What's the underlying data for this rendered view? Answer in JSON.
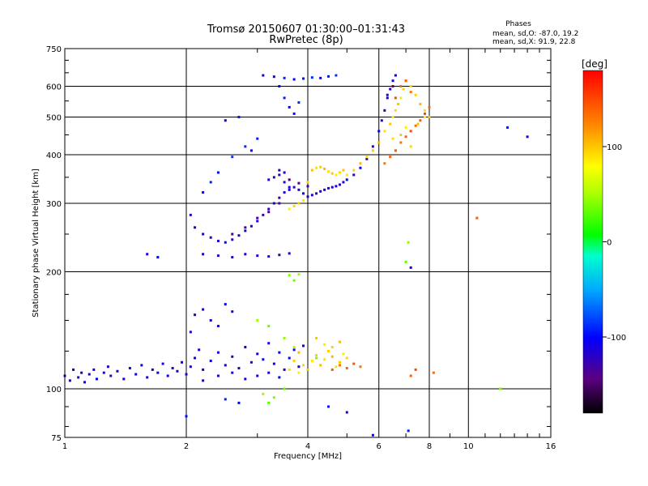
{
  "chart_data": {
    "type": "scatter",
    "title": "Tromsø 20150607 01:30:00–01:31:43",
    "subtitle": "RwPretec (8p)",
    "phases_title": "Phases",
    "phases_o": "mean, sd,O: -87.0, 19.2",
    "phases_x": "mean, sd,X:  91.9, 22.8",
    "xlabel": "Frequency [MHz]",
    "ylabel": "Stationary phase Virtual Height [km]",
    "xscale": "log",
    "yscale": "log",
    "xlim": [
      1,
      16
    ],
    "ylim": [
      75,
      750
    ],
    "xticks": [
      1,
      2,
      4,
      6,
      8,
      10,
      16
    ],
    "xtick_labels": [
      "1",
      "2",
      "4",
      "6",
      "8",
      "10",
      "16"
    ],
    "yticks": [
      75,
      100,
      200,
      300,
      400,
      500,
      600,
      750
    ],
    "ytick_labels": [
      "75",
      "100",
      "200",
      "300",
      "400",
      "500",
      "600",
      "750"
    ],
    "grid": true,
    "colorbar": {
      "label": "[deg]",
      "range": [
        -180,
        180
      ],
      "ticks": [
        100,
        0,
        -100
      ],
      "tick_labels": [
        "100",
        "0",
        "–100"
      ]
    },
    "series": [
      {
        "mode": "O",
        "phase": -110,
        "points": [
          [
            1.0,
            108
          ],
          [
            1.03,
            105
          ],
          [
            1.05,
            112
          ],
          [
            1.08,
            107
          ],
          [
            1.1,
            110
          ],
          [
            1.12,
            104
          ],
          [
            1.15,
            109
          ],
          [
            1.18,
            112
          ],
          [
            1.2,
            106
          ],
          [
            1.25,
            110
          ],
          [
            1.28,
            114
          ],
          [
            1.3,
            108
          ],
          [
            1.35,
            111
          ],
          [
            1.4,
            106
          ],
          [
            1.45,
            113
          ],
          [
            1.5,
            109
          ],
          [
            1.55,
            115
          ],
          [
            1.6,
            107
          ],
          [
            1.65,
            112
          ],
          [
            1.7,
            110
          ],
          [
            1.75,
            116
          ],
          [
            1.8,
            108
          ],
          [
            1.85,
            113
          ],
          [
            1.9,
            111
          ],
          [
            1.95,
            117
          ],
          [
            2.0,
            109
          ],
          [
            2.05,
            114
          ],
          [
            2.1,
            120
          ],
          [
            2.15,
            126
          ],
          [
            2.2,
            112
          ],
          [
            2.3,
            118
          ],
          [
            2.4,
            124
          ],
          [
            2.5,
            115
          ],
          [
            2.6,
            121
          ],
          [
            2.7,
            113
          ],
          [
            2.8,
            128
          ],
          [
            2.9,
            117
          ],
          [
            3.0,
            123
          ],
          [
            3.1,
            119
          ],
          [
            3.2,
            131
          ],
          [
            3.3,
            116
          ],
          [
            3.4,
            124
          ],
          [
            3.5,
            112
          ],
          [
            3.6,
            120
          ],
          [
            3.7,
            126
          ],
          [
            3.8,
            114
          ],
          [
            3.9,
            129
          ],
          [
            2.05,
            140
          ],
          [
            2.1,
            155
          ],
          [
            2.2,
            160
          ],
          [
            2.3,
            150
          ],
          [
            2.4,
            145
          ],
          [
            2.5,
            165
          ],
          [
            2.6,
            158
          ],
          [
            2.2,
            105
          ],
          [
            2.4,
            108
          ],
          [
            2.6,
            110
          ],
          [
            2.8,
            106
          ],
          [
            3.0,
            108
          ],
          [
            3.2,
            110
          ],
          [
            3.4,
            107
          ]
        ]
      },
      {
        "mode": "O",
        "phase": -115,
        "points": [
          [
            2.05,
            280
          ],
          [
            2.1,
            260
          ],
          [
            2.2,
            250
          ],
          [
            2.3,
            245
          ],
          [
            2.4,
            240
          ],
          [
            2.5,
            238
          ],
          [
            2.6,
            242
          ],
          [
            2.7,
            248
          ],
          [
            2.8,
            255
          ],
          [
            2.9,
            262
          ],
          [
            3.0,
            270
          ],
          [
            3.1,
            280
          ],
          [
            3.2,
            290
          ],
          [
            3.3,
            300
          ],
          [
            3.4,
            310
          ],
          [
            3.5,
            320
          ],
          [
            3.6,
            325
          ],
          [
            3.7,
            330
          ],
          [
            3.8,
            325
          ],
          [
            3.9,
            318
          ],
          [
            4.0,
            312
          ],
          [
            4.1,
            315
          ],
          [
            4.2,
            318
          ],
          [
            4.3,
            322
          ],
          [
            4.4,
            325
          ],
          [
            4.5,
            328
          ],
          [
            4.6,
            330
          ],
          [
            4.7,
            332
          ],
          [
            4.8,
            335
          ],
          [
            4.9,
            340
          ],
          [
            5.0,
            345
          ],
          [
            5.2,
            355
          ],
          [
            5.4,
            370
          ],
          [
            5.6,
            390
          ],
          [
            5.8,
            420
          ],
          [
            6.0,
            460
          ],
          [
            6.1,
            490
          ],
          [
            6.2,
            520
          ],
          [
            6.3,
            560
          ],
          [
            6.4,
            590
          ],
          [
            6.5,
            620
          ],
          [
            6.6,
            640
          ],
          [
            3.2,
            345
          ],
          [
            3.3,
            350
          ],
          [
            3.4,
            355
          ],
          [
            3.5,
            340
          ],
          [
            3.6,
            330
          ],
          [
            3.4,
            365
          ],
          [
            3.5,
            360
          ],
          [
            2.2,
            222
          ],
          [
            2.4,
            220
          ],
          [
            2.6,
            218
          ],
          [
            2.8,
            222
          ],
          [
            3.0,
            220
          ],
          [
            3.2,
            219
          ],
          [
            3.4,
            221
          ],
          [
            3.6,
            223
          ]
        ]
      },
      {
        "mode": "O",
        "phase": -95,
        "points": [
          [
            3.1,
            640
          ],
          [
            3.3,
            635
          ],
          [
            3.5,
            630
          ],
          [
            3.7,
            625
          ],
          [
            3.9,
            628
          ],
          [
            4.1,
            632
          ],
          [
            4.3,
            630
          ],
          [
            4.5,
            636
          ],
          [
            4.7,
            640
          ],
          [
            3.4,
            600
          ],
          [
            3.5,
            560
          ],
          [
            3.6,
            530
          ],
          [
            3.7,
            510
          ],
          [
            3.8,
            545
          ],
          [
            2.5,
            490
          ],
          [
            2.7,
            500
          ],
          [
            2.8,
            420
          ],
          [
            2.9,
            410
          ],
          [
            3.0,
            440
          ],
          [
            2.6,
            395
          ],
          [
            2.4,
            360
          ],
          [
            2.3,
            340
          ],
          [
            2.2,
            320
          ]
        ]
      },
      {
        "mode": "X",
        "phase": 95,
        "points": [
          [
            3.6,
            290
          ],
          [
            3.7,
            295
          ],
          [
            3.8,
            300
          ],
          [
            3.9,
            305
          ],
          [
            4.0,
            340
          ],
          [
            4.1,
            365
          ],
          [
            4.2,
            370
          ],
          [
            4.3,
            372
          ],
          [
            4.4,
            368
          ],
          [
            4.5,
            362
          ],
          [
            4.6,
            358
          ],
          [
            4.7,
            355
          ],
          [
            4.8,
            360
          ],
          [
            4.9,
            365
          ],
          [
            5.0,
            355
          ],
          [
            5.2,
            365
          ],
          [
            5.4,
            380
          ],
          [
            5.6,
            395
          ],
          [
            5.8,
            410
          ],
          [
            6.0,
            430
          ],
          [
            6.2,
            460
          ],
          [
            6.4,
            480
          ],
          [
            6.5,
            500
          ],
          [
            6.6,
            520
          ],
          [
            6.7,
            540
          ],
          [
            6.8,
            560
          ],
          [
            6.9,
            590
          ],
          [
            7.0,
            620
          ],
          [
            7.2,
            600
          ],
          [
            7.4,
            570
          ],
          [
            7.6,
            540
          ],
          [
            7.8,
            520
          ],
          [
            8.0,
            500
          ],
          [
            3.8,
            110
          ],
          [
            3.9,
            115
          ],
          [
            4.0,
            112
          ],
          [
            4.1,
            118
          ],
          [
            4.2,
            122
          ],
          [
            4.3,
            115
          ],
          [
            4.4,
            119
          ],
          [
            4.5,
            125
          ],
          [
            4.6,
            121
          ],
          [
            4.7,
            114
          ],
          [
            4.8,
            117
          ],
          [
            4.9,
            123
          ],
          [
            5.0,
            120
          ],
          [
            4.2,
            135
          ],
          [
            4.4,
            130
          ],
          [
            4.6,
            128
          ],
          [
            4.8,
            132
          ],
          [
            3.6,
            112
          ],
          [
            3.7,
            118
          ],
          [
            3.8,
            124
          ],
          [
            6.5,
            440
          ],
          [
            6.8,
            450
          ],
          [
            7.0,
            470
          ],
          [
            7.2,
            420
          ],
          [
            7.5,
            480
          ],
          [
            7.8,
            500
          ]
        ]
      },
      {
        "mode": "X",
        "phase": 140,
        "points": [
          [
            6.2,
            380
          ],
          [
            6.4,
            395
          ],
          [
            6.6,
            410
          ],
          [
            6.8,
            430
          ],
          [
            7.0,
            445
          ],
          [
            7.2,
            460
          ],
          [
            7.4,
            475
          ],
          [
            7.6,
            490
          ],
          [
            7.8,
            510
          ],
          [
            8.0,
            530
          ],
          [
            4.6,
            112
          ],
          [
            4.8,
            115
          ],
          [
            5.0,
            113
          ],
          [
            5.2,
            116
          ],
          [
            5.4,
            114
          ],
          [
            7.2,
            108
          ],
          [
            7.4,
            112
          ],
          [
            8.2,
            110
          ],
          [
            10.5,
            275
          ],
          [
            6.6,
            560
          ],
          [
            6.8,
            600
          ],
          [
            7.0,
            620
          ],
          [
            7.2,
            580
          ]
        ]
      },
      {
        "mode": "X",
        "phase": 40,
        "points": [
          [
            3.2,
            92
          ],
          [
            3.3,
            95
          ],
          [
            3.1,
            97
          ],
          [
            3.5,
            100
          ],
          [
            3.6,
            196
          ],
          [
            3.8,
            197
          ],
          [
            3.7,
            190
          ],
          [
            3.5,
            135
          ],
          [
            3.7,
            128
          ],
          [
            4.2,
            120
          ],
          [
            7.1,
            238
          ],
          [
            7.0,
            212
          ],
          [
            12.0,
            100
          ],
          [
            3.0,
            150
          ],
          [
            3.2,
            145
          ]
        ]
      },
      {
        "mode": "O",
        "phase": -140,
        "points": [
          [
            3.6,
            345
          ],
          [
            3.8,
            338
          ],
          [
            4.0,
            332
          ],
          [
            2.6,
            250
          ],
          [
            2.8,
            260
          ],
          [
            3.0,
            275
          ],
          [
            3.2,
            285
          ],
          [
            3.4,
            300
          ],
          [
            6.3,
            570
          ],
          [
            6.5,
            600
          ]
        ]
      },
      {
        "mode": "O",
        "phase": -100,
        "points": [
          [
            1.6,
            222
          ],
          [
            1.7,
            218
          ],
          [
            12.5,
            470
          ],
          [
            14.0,
            445
          ],
          [
            5.8,
            76
          ],
          [
            7.1,
            78
          ],
          [
            7.2,
            205
          ],
          [
            2.0,
            85
          ],
          [
            2.5,
            94
          ],
          [
            2.7,
            92
          ],
          [
            4.5,
            90
          ],
          [
            5.0,
            87
          ]
        ]
      }
    ]
  }
}
